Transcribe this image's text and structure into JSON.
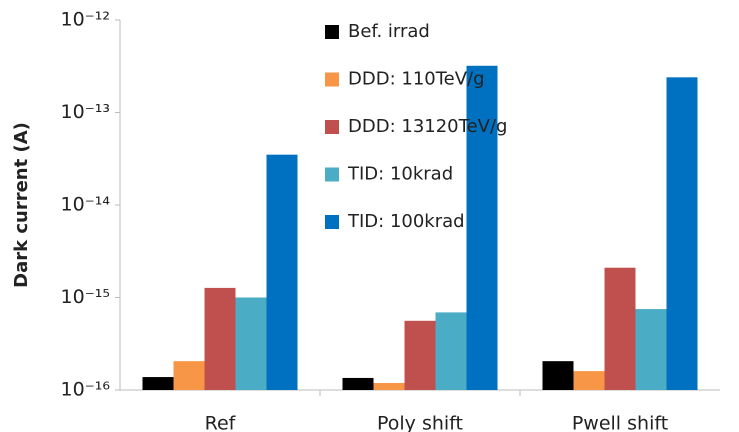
{
  "chart_data": {
    "type": "bar",
    "y_label": "Dark current (A)",
    "categories": [
      "Ref",
      "Poly shift",
      "Pwell shift"
    ],
    "series": [
      {
        "name": "Bef. irrad",
        "color": "#000000",
        "values": [
          1.38e-16,
          1.35e-16,
          2.05e-16
        ]
      },
      {
        "name": "DDD: 110TeV/g",
        "color": "#f79646",
        "values": [
          2.05e-16,
          1.19e-16,
          1.6e-16
        ]
      },
      {
        "name": "DDD: 13120TeV/g",
        "color": "#c0504d",
        "values": [
          1.27e-15,
          5.6e-16,
          2.1e-15
        ]
      },
      {
        "name": "TID: 10krad",
        "color": "#4bacc6",
        "values": [
          1e-15,
          6.9e-16,
          7.5e-16
        ]
      },
      {
        "name": "TID: 100krad",
        "color": "#0070c0",
        "values": [
          3.5e-14,
          3.2e-13,
          2.4e-13
        ]
      }
    ],
    "log_scale": true,
    "ylim": [
      1e-16,
      1e-12
    ],
    "yticks": [
      {
        "value": 1e-16,
        "label": "10⁻¹⁶"
      },
      {
        "value": 1e-15,
        "label": "10⁻¹⁵"
      },
      {
        "value": 1e-14,
        "label": "10⁻¹⁴"
      },
      {
        "value": 1e-13,
        "label": "10⁻¹³"
      },
      {
        "value": 1e-12,
        "label": "10⁻¹²"
      }
    ],
    "grid": false,
    "legend": "top"
  }
}
